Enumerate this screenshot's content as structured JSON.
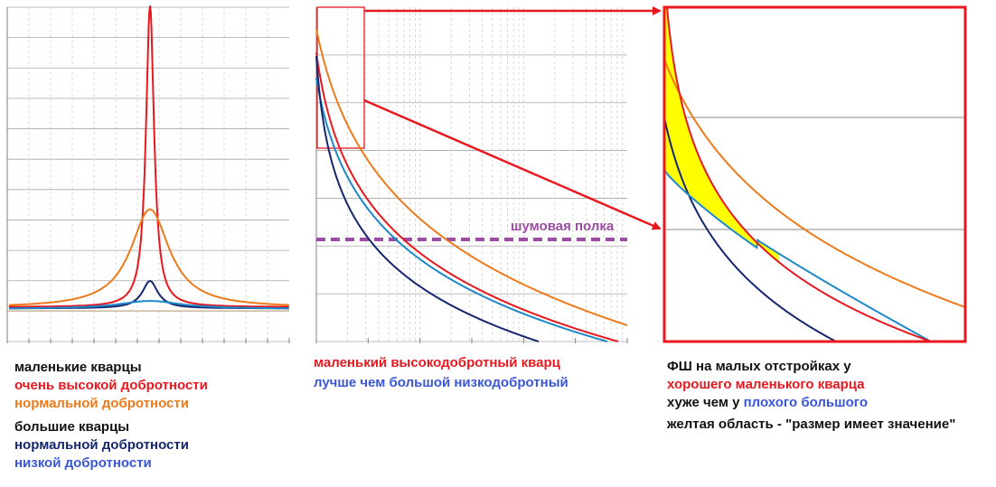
{
  "colors": {
    "red": "#e8181f",
    "orange": "#ee7a1b",
    "navy": "#14266e",
    "blue": "#1e88c8",
    "purple": "#9b4da3",
    "yellow": "#ffff00",
    "grid": "#a6a6a6"
  },
  "chart_data": [
    {
      "type": "line",
      "description_key": "resonance",
      "x_scale": "linear",
      "xlim": [
        -1,
        1
      ],
      "ylim": [
        0,
        1
      ],
      "grid": true,
      "series": [
        {
          "color": "red",
          "peak": 1.0,
          "width": 0.035,
          "baseline": 0.012
        },
        {
          "color": "orange",
          "peak": 0.33,
          "width": 0.17,
          "baseline": 0.01
        },
        {
          "color": "navy",
          "peak": 0.095,
          "width": 0.07,
          "baseline": 0.008
        },
        {
          "color": "blue",
          "peak": 0.03,
          "width": 0.3,
          "baseline": 0.006
        }
      ]
    },
    {
      "type": "line",
      "description_key": "phase-noise",
      "x_scale": "log",
      "grid": true,
      "noise_floor_label": "шумовая полка",
      "series": [
        {
          "color": "orange"
        },
        {
          "color": "red"
        },
        {
          "color": "blue"
        },
        {
          "color": "navy"
        }
      ]
    },
    {
      "type": "area",
      "description_key": "zoom",
      "grid": true,
      "series": [
        {
          "color": "red"
        },
        {
          "color": "orange"
        },
        {
          "color": "navy"
        },
        {
          "color": "blue"
        }
      ],
      "highlight": "yellow"
    }
  ],
  "captions": {
    "left": {
      "line1": "маленькие кварцы",
      "line2": "очень высокой добротности",
      "line3": "нормальной добротности",
      "line4": "большие кварцы",
      "line5": "нормальной  добротности",
      "line6": "низкой добротности"
    },
    "middle": {
      "line1": "маленький высокодобротный кварц",
      "line2": "лучше чем большой низкодобротный"
    },
    "right": {
      "line1": "ФШ на малых отстройках у",
      "line2": "хорошего маленького кварца",
      "line3a": "хуже чем у ",
      "line3b": "плохого большого",
      "line4": "желтая область - \"размер имеет значение\""
    }
  }
}
